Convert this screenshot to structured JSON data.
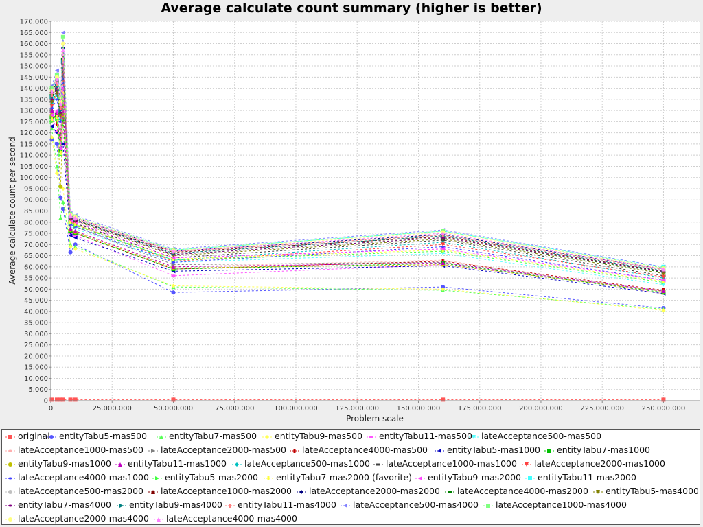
{
  "chart_data": {
    "type": "line",
    "title": "Average calculate count summary (higher is better)",
    "xlabel": "Problem scale",
    "ylabel": "Average calculate count per second",
    "xlim": [
      0,
      265000000
    ],
    "ylim": [
      0,
      170000
    ],
    "xticks": [
      "0",
      "25.000.000",
      "50.000.000",
      "75.000.000",
      "100.000.000",
      "125.000.000",
      "150.000.000",
      "175.000.000",
      "200.000.000",
      "225.000.000",
      "250.000.000"
    ],
    "yticks": [
      "0",
      "5.000",
      "10.000",
      "15.000",
      "20.000",
      "25.000",
      "30.000",
      "35.000",
      "40.000",
      "45.000",
      "50.000",
      "55.000",
      "60.000",
      "65.000",
      "70.000",
      "75.000",
      "80.000",
      "85.000",
      "90.000",
      "95.000",
      "100.000",
      "105.000",
      "110.000",
      "115.000",
      "120.000",
      "125.000",
      "130.000",
      "135.000",
      "140.000",
      "145.000",
      "150.000",
      "155.000",
      "160.000",
      "165.000",
      "170.000"
    ],
    "grid": true,
    "legend_position": "bottom",
    "x": [
      400000,
      2500000,
      4000000,
      5000000,
      8000000,
      10000000,
      50000000,
      160000000,
      250000000
    ],
    "series": [
      {
        "name": "original",
        "color": "#ff5555",
        "values": [
          500,
          500,
          500,
          500,
          500,
          500,
          500,
          500,
          500
        ]
      },
      {
        "name": "entityTabu5-mas500",
        "color": "#5555ff",
        "values": [
          117000,
          115000,
          91000,
          86000,
          66500,
          70000,
          48500,
          51000,
          41500
        ]
      },
      {
        "name": "entityTabu7-mas500",
        "color": "#55ff55",
        "values": [
          122000,
          105000,
          82000,
          89000,
          70000,
          69000,
          51000,
          49500,
          41000
        ]
      },
      {
        "name": "entityTabu9-mas500",
        "color": "#ffff55",
        "values": [
          118000,
          102000,
          96000,
          95000,
          69000,
          68000,
          51500,
          50000,
          40500
        ]
      },
      {
        "name": "entityTabu11-mas500",
        "color": "#ff55ff",
        "values": [
          128000,
          121000,
          118000,
          120000,
          75000,
          74000,
          56000,
          61000,
          49000
        ]
      },
      {
        "name": "lateAcceptance500-mas500",
        "color": "#55ffff",
        "values": [
          129000,
          140000,
          126000,
          152000,
          78000,
          77000,
          62000,
          66000,
          52000
        ]
      },
      {
        "name": "lateAcceptance1000-mas500",
        "color": "#ffafaf",
        "values": [
          125000,
          127000,
          120000,
          145000,
          77000,
          76000,
          60000,
          63000,
          48000
        ]
      },
      {
        "name": "lateAcceptance2000-mas500",
        "color": "#808080",
        "values": [
          130000,
          128000,
          119000,
          140000,
          79000,
          78000,
          61000,
          62000,
          49000
        ]
      },
      {
        "name": "lateAcceptance4000-mas500",
        "color": "#c00000",
        "values": [
          131000,
          124000,
          117000,
          133000,
          76000,
          75000,
          59000,
          62500,
          49500
        ]
      },
      {
        "name": "entityTabu5-mas1000",
        "color": "#0000c0",
        "values": [
          123000,
          120000,
          115000,
          115000,
          74000,
          73000,
          58000,
          60500,
          48000
        ]
      },
      {
        "name": "entityTabu7-mas1000",
        "color": "#00c000",
        "values": [
          127000,
          128000,
          112000,
          126000,
          76000,
          75000,
          59000,
          61500,
          48500
        ]
      },
      {
        "name": "entityTabu9-mas1000",
        "color": "#c0c000",
        "values": [
          128000,
          126000,
          96000,
          128000,
          76500,
          75500,
          59500,
          61000,
          49000
        ]
      },
      {
        "name": "entityTabu11-mas1000",
        "color": "#c000c0",
        "values": [
          130000,
          129000,
          114000,
          130000,
          77000,
          76000,
          60000,
          61800,
          49200
        ]
      },
      {
        "name": "lateAcceptance500-mas1000",
        "color": "#00c0c0",
        "values": [
          133000,
          137000,
          126000,
          148000,
          80000,
          79000,
          63000,
          71000,
          55000
        ]
      },
      {
        "name": "lateAcceptance1000-mas1000",
        "color": "#404040",
        "values": [
          134000,
          139000,
          130000,
          149000,
          80500,
          79500,
          64000,
          72000,
          56000
        ]
      },
      {
        "name": "lateAcceptance2000-mas1000",
        "color": "#ff4040",
        "values": [
          132000,
          138000,
          127000,
          147000,
          80000,
          79000,
          62500,
          70000,
          55500
        ]
      },
      {
        "name": "lateAcceptance4000-mas1000",
        "color": "#4040ff",
        "values": [
          131000,
          135000,
          125000,
          145000,
          79000,
          78000,
          62000,
          69000,
          54000
        ]
      },
      {
        "name": "entityTabu5-mas2000",
        "color": "#40ff40",
        "values": [
          125000,
          126000,
          110000,
          137000,
          79500,
          78500,
          63000,
          67000,
          53000
        ]
      },
      {
        "name": "entityTabu7-mas2000 (favorite)",
        "color": "#ffff40",
        "values": [
          126000,
          127000,
          111000,
          138000,
          80000,
          79000,
          63500,
          67500,
          53500
        ]
      },
      {
        "name": "entityTabu9-mas2000",
        "color": "#ff40ff",
        "values": [
          128000,
          130000,
          113000,
          140000,
          81000,
          80000,
          64000,
          68000,
          54000
        ]
      },
      {
        "name": "entityTabu11-mas2000",
        "color": "#40ffff",
        "values": [
          136000,
          146000,
          133000,
          152000,
          83000,
          82000,
          67500,
          76000,
          60000
        ]
      },
      {
        "name": "lateAcceptance500-mas2000",
        "color": "#c0c0c0",
        "values": [
          138000,
          144000,
          130000,
          155000,
          82500,
          81500,
          66000,
          74000,
          58500
        ]
      },
      {
        "name": "lateAcceptance1000-mas2000",
        "color": "#800000",
        "values": [
          139000,
          142000,
          131000,
          154000,
          82000,
          81000,
          66500,
          73500,
          58000
        ]
      },
      {
        "name": "lateAcceptance2000-mas2000",
        "color": "#000080",
        "values": [
          140000,
          145000,
          135000,
          158000,
          83000,
          82000,
          67000,
          74500,
          59000
        ]
      },
      {
        "name": "lateAcceptance4000-mas2000",
        "color": "#008000",
        "values": [
          137000,
          143000,
          132000,
          153000,
          82000,
          81000,
          65500,
          73000,
          57500
        ]
      },
      {
        "name": "entityTabu5-mas4000",
        "color": "#808000",
        "values": [
          134000,
          138000,
          128000,
          150000,
          81500,
          80500,
          65000,
          72500,
          57000
        ]
      },
      {
        "name": "entityTabu7-mas4000",
        "color": "#800080",
        "values": [
          135000,
          140000,
          129000,
          151000,
          81800,
          80800,
          65500,
          73000,
          57800
        ]
      },
      {
        "name": "entityTabu9-mas4000",
        "color": "#008080",
        "values": [
          136000,
          141000,
          130000,
          152000,
          82200,
          81200,
          66000,
          73800,
          58200
        ]
      },
      {
        "name": "entityTabu11-mas4000",
        "color": "#ff8080",
        "values": [
          137000,
          142000,
          131000,
          153000,
          82600,
          81600,
          66800,
          74200,
          58800
        ]
      },
      {
        "name": "lateAcceptance500-mas4000",
        "color": "#8080ff",
        "values": [
          141000,
          148000,
          137000,
          165000,
          84000,
          83000,
          68000,
          76500,
          60000
        ]
      },
      {
        "name": "lateAcceptance1000-mas4000",
        "color": "#80ff80",
        "values": [
          140000,
          146000,
          136000,
          163000,
          83500,
          82500,
          67500,
          76000,
          59500
        ]
      },
      {
        "name": "lateAcceptance2000-mas4000",
        "color": "#ffff80",
        "values": [
          139000,
          145000,
          134000,
          160000,
          83200,
          82200,
          67200,
          75500,
          59200
        ]
      },
      {
        "name": "lateAcceptance4000-mas4000",
        "color": "#ff80ff",
        "values": [
          138500,
          144000,
          133000,
          157000,
          83000,
          82000,
          67000,
          75000,
          59000
        ]
      }
    ]
  }
}
